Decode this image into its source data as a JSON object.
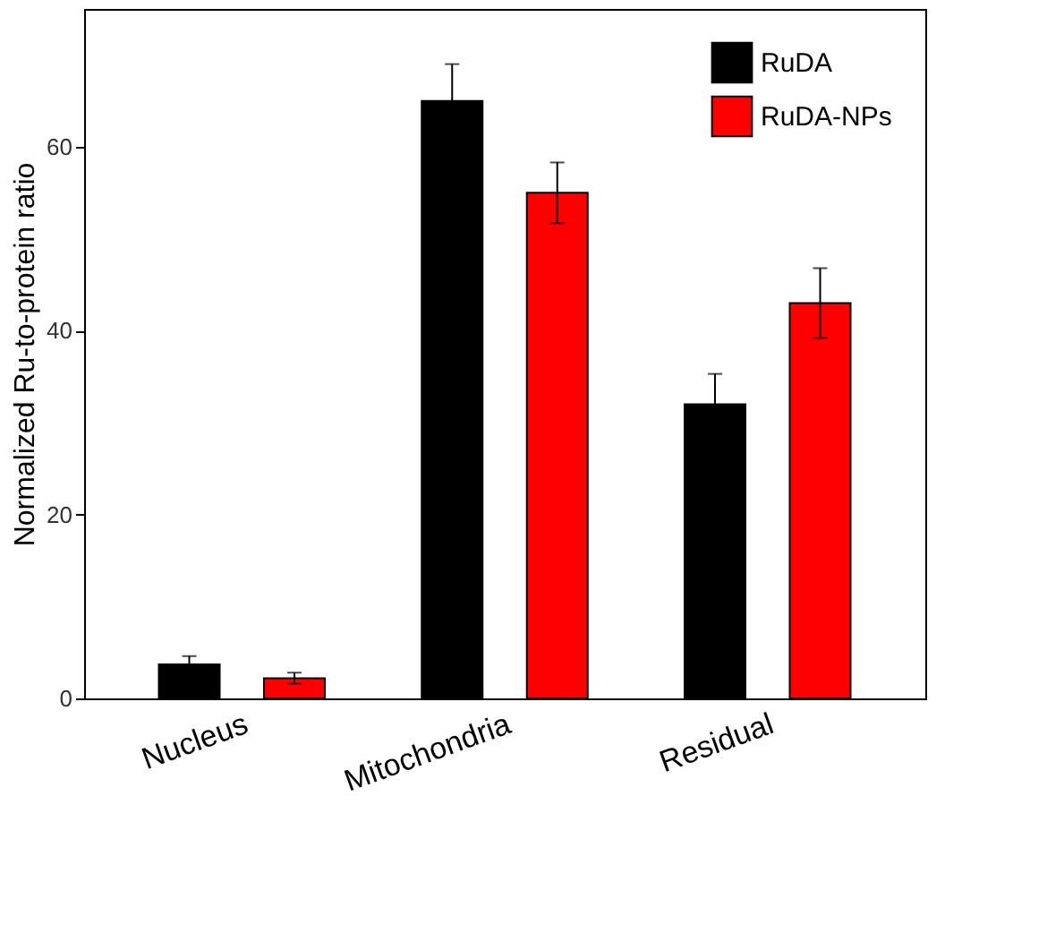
{
  "chart_data": {
    "type": "bar",
    "ylabel": "Normalized Ru-to-protein ratio",
    "categories": [
      "Nucleus",
      "Mitochondria",
      "Residual"
    ],
    "series": [
      {
        "name": "RuDA",
        "color": "#000000",
        "values": [
          3.7,
          65,
          32
        ],
        "errors": [
          0.9,
          4,
          3.3
        ]
      },
      {
        "name": "RuDA-NPs",
        "color": "#ff0000",
        "values": [
          2.2,
          55,
          43
        ],
        "errors": [
          0.6,
          3.3,
          3.8
        ]
      }
    ],
    "ylim": [
      0,
      75
    ],
    "yticks": [
      0,
      20,
      40,
      60
    ],
    "grid": false,
    "legend": "top right"
  }
}
